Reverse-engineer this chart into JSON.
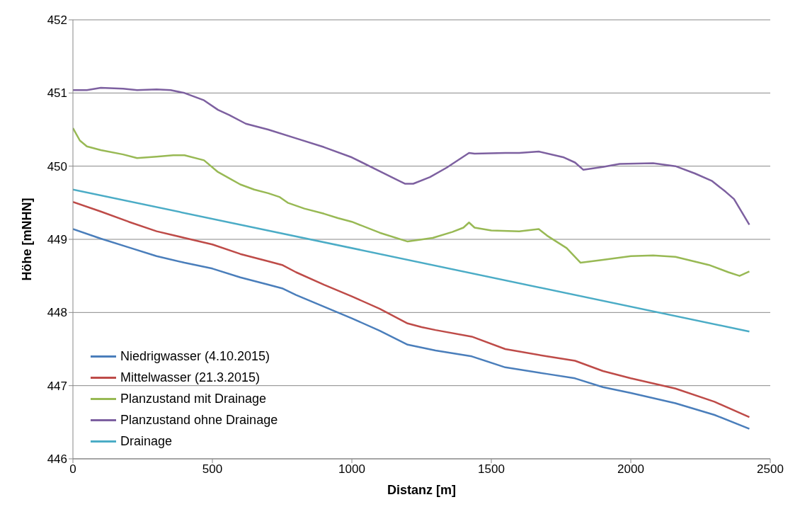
{
  "chart_data": {
    "type": "line",
    "xlabel": "Distanz [m]",
    "ylabel": "Höhe [mNHN]",
    "xlim": [
      0,
      2500
    ],
    "xticks": [
      0,
      500,
      1000,
      1500,
      2000,
      2500
    ],
    "ylim": [
      446,
      452
    ],
    "yticks": [
      446,
      447,
      448,
      449,
      450,
      451,
      452
    ],
    "grid": "y",
    "legend": "bottom left",
    "marker": "none",
    "line_style": "solid",
    "series": [
      {
        "name": "Niedrigwasser (4.10.2015)",
        "color": "#4a7ebb",
        "x": [
          0,
          100,
          200,
          300,
          400,
          500,
          600,
          700,
          750,
          800,
          900,
          1000,
          1100,
          1200,
          1300,
          1430,
          1550,
          1700,
          1800,
          1900,
          2000,
          2160,
          2300,
          2425
        ],
        "values": [
          449.14,
          449.01,
          448.89,
          448.77,
          448.68,
          448.6,
          448.48,
          448.38,
          448.33,
          448.24,
          448.08,
          447.92,
          447.75,
          447.56,
          447.48,
          447.4,
          447.25,
          447.16,
          447.1,
          446.98,
          446.9,
          446.76,
          446.6,
          446.41
        ]
      },
      {
        "name": "Mittelwasser (21.3.2015)",
        "color": "#be4b48",
        "x": [
          0,
          100,
          200,
          300,
          400,
          500,
          600,
          700,
          750,
          800,
          900,
          1000,
          1100,
          1200,
          1250,
          1300,
          1430,
          1550,
          1700,
          1800,
          1900,
          2000,
          2160,
          2300,
          2425
        ],
        "values": [
          449.51,
          449.38,
          449.24,
          449.11,
          449.02,
          448.93,
          448.8,
          448.7,
          448.65,
          448.55,
          448.38,
          448.22,
          448.05,
          447.85,
          447.8,
          447.76,
          447.67,
          447.5,
          447.4,
          447.34,
          447.2,
          447.1,
          446.96,
          446.78,
          446.57
        ]
      },
      {
        "name": "Planzustand mit Drainage",
        "color": "#98b954",
        "x": [
          0,
          25,
          50,
          100,
          180,
          230,
          300,
          360,
          400,
          470,
          520,
          600,
          650,
          700,
          740,
          770,
          830,
          900,
          950,
          1000,
          1100,
          1200,
          1290,
          1360,
          1400,
          1420,
          1440,
          1500,
          1600,
          1670,
          1700,
          1770,
          1820,
          1900,
          2000,
          2080,
          2160,
          2280,
          2350,
          2390,
          2425
        ],
        "values": [
          450.52,
          450.35,
          450.27,
          450.22,
          450.16,
          450.11,
          450.13,
          450.15,
          450.15,
          450.08,
          449.92,
          449.75,
          449.68,
          449.63,
          449.58,
          449.5,
          449.42,
          449.35,
          449.29,
          449.24,
          449.09,
          448.97,
          449.02,
          449.1,
          449.16,
          449.23,
          449.16,
          449.12,
          449.11,
          449.14,
          449.05,
          448.88,
          448.68,
          448.72,
          448.77,
          448.78,
          448.76,
          448.65,
          448.55,
          448.5,
          448.56
        ]
      },
      {
        "name": "Planzustand ohne Drainage",
        "color": "#7d60a0",
        "x": [
          0,
          50,
          100,
          180,
          230,
          300,
          350,
          400,
          470,
          520,
          560,
          620,
          700,
          800,
          900,
          1000,
          1100,
          1190,
          1220,
          1280,
          1340,
          1420,
          1440,
          1550,
          1600,
          1670,
          1760,
          1800,
          1830,
          1900,
          1960,
          2080,
          2160,
          2230,
          2290,
          2340,
          2370,
          2425
        ],
        "values": [
          451.04,
          451.04,
          451.07,
          451.06,
          451.04,
          451.05,
          451.04,
          451.0,
          450.9,
          450.77,
          450.7,
          450.58,
          450.5,
          450.38,
          450.26,
          450.12,
          449.93,
          449.76,
          449.76,
          449.85,
          449.98,
          450.18,
          450.17,
          450.18,
          450.18,
          450.2,
          450.12,
          450.05,
          449.95,
          449.99,
          450.03,
          450.04,
          450.0,
          449.9,
          449.8,
          449.65,
          449.55,
          449.2
        ]
      },
      {
        "name": "Drainage",
        "color": "#4bacc6",
        "x": [
          0,
          2425
        ],
        "values": [
          449.68,
          447.74
        ]
      }
    ]
  }
}
